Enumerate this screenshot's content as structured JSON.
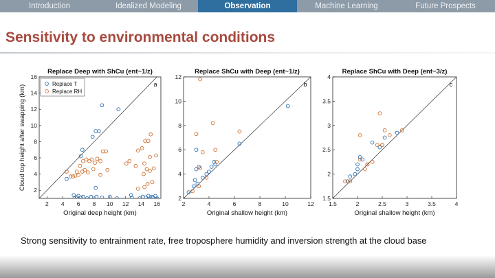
{
  "nav": {
    "tabs": [
      {
        "label": "Introduction",
        "active": false
      },
      {
        "label": "Idealized Modeling",
        "active": false
      },
      {
        "label": "Observation",
        "active": true
      },
      {
        "label": "Machine Learning",
        "active": false
      },
      {
        "label": "Future Prospects",
        "active": false
      }
    ]
  },
  "slide": {
    "title": "Sensitivity to environmental conditions",
    "caption": "Strong sensitivity to entrainment rate, free troposphere humidity and inversion strength at the cloud base"
  },
  "colors": {
    "blue": "#2b6fb3",
    "orange": "#cf6e2d",
    "title": "#a84a3f",
    "active_tab": "#2f6f9f"
  },
  "chart_data": [
    {
      "type": "scatter",
      "title": "Replace Deep with ShCu (ent~1/z)",
      "panel_label": "a",
      "xlabel": "Original deep height (km)",
      "ylabel": "Cloud top height after swapping (km)",
      "xlim": [
        1,
        16.5
      ],
      "ylim": [
        1,
        16
      ],
      "xticks": [
        2,
        4,
        6,
        8,
        10,
        12,
        14,
        16
      ],
      "yticks": [
        2,
        4,
        6,
        8,
        10,
        12,
        14,
        16
      ],
      "legend": {
        "placement": "top-left",
        "entries": [
          "Replace T",
          "Replace RH"
        ]
      },
      "series": [
        {
          "name": "Replace T",
          "color": "#2b6fb3",
          "points": [
            [
              4.5,
              3.4
            ],
            [
              6.5,
              7.0
            ],
            [
              6.3,
              6.2
            ],
            [
              7.8,
              8.6
            ],
            [
              8.2,
              9.3
            ],
            [
              8.6,
              9.3
            ],
            [
              9.0,
              12.5
            ],
            [
              11.1,
              12.0
            ],
            [
              8.2,
              2.3
            ],
            [
              5.4,
              1.4
            ],
            [
              5.5,
              1.0
            ],
            [
              5.8,
              1.1
            ],
            [
              6.0,
              1.3
            ],
            [
              6.3,
              1.1
            ],
            [
              6.6,
              1.2
            ],
            [
              7.1,
              1.0
            ],
            [
              7.6,
              1.2
            ],
            [
              8.3,
              1.2
            ],
            [
              9.0,
              1.1
            ],
            [
              10.0,
              1.2
            ],
            [
              10.9,
              1.0
            ],
            [
              12.8,
              1.1
            ],
            [
              12.7,
              1.4
            ],
            [
              13.8,
              1.0
            ],
            [
              14.2,
              1.2
            ],
            [
              14.6,
              1.1
            ],
            [
              14.9,
              1.3
            ],
            [
              15.1,
              1.0
            ],
            [
              15.3,
              1.2
            ],
            [
              15.5,
              1.1
            ],
            [
              15.8,
              1.3
            ],
            [
              16.0,
              1.0
            ]
          ]
        },
        {
          "name": "Replace RH",
          "color": "#cf6e2d",
          "points": [
            [
              4.5,
              4.3
            ],
            [
              5.0,
              3.7
            ],
            [
              5.3,
              3.7
            ],
            [
              5.6,
              3.8
            ],
            [
              5.8,
              4.3
            ],
            [
              6.0,
              3.9
            ],
            [
              6.2,
              5.0
            ],
            [
              6.5,
              4.3
            ],
            [
              6.6,
              5.6
            ],
            [
              6.8,
              4.5
            ],
            [
              7.0,
              5.8
            ],
            [
              7.2,
              4.2
            ],
            [
              7.4,
              5.6
            ],
            [
              7.7,
              5.8
            ],
            [
              7.9,
              4.6
            ],
            [
              8.1,
              5.4
            ],
            [
              8.4,
              5.9
            ],
            [
              8.8,
              5.6
            ],
            [
              9.1,
              6.8
            ],
            [
              9.5,
              6.8
            ],
            [
              8.8,
              3.9
            ],
            [
              9.7,
              4.5
            ],
            [
              12.1,
              5.3
            ],
            [
              12.5,
              5.6
            ],
            [
              13.3,
              5.0
            ],
            [
              13.6,
              6.9
            ],
            [
              14.1,
              7.2
            ],
            [
              14.5,
              8.1
            ],
            [
              14.9,
              8.1
            ],
            [
              15.2,
              8.9
            ],
            [
              15.1,
              6.1
            ],
            [
              14.4,
              5.3
            ],
            [
              14.7,
              4.6
            ],
            [
              14.3,
              4.0
            ],
            [
              15.6,
              4.7
            ],
            [
              15.9,
              6.3
            ],
            [
              15.1,
              4.4
            ],
            [
              14.8,
              2.8
            ],
            [
              14.4,
              2.4
            ],
            [
              13.6,
              2.2
            ],
            [
              15.4,
              3.0
            ]
          ]
        }
      ]
    },
    {
      "type": "scatter",
      "title": "Replace ShCu with Deep (ent~1/z)",
      "panel_label": "b",
      "xlabel": "Original shallow height (km)",
      "ylabel": "",
      "xlim": [
        2,
        12
      ],
      "ylim": [
        2,
        12
      ],
      "xticks": [
        2,
        4,
        6,
        8,
        10,
        12
      ],
      "yticks": [
        2,
        4,
        6,
        8,
        10,
        12
      ],
      "series": [
        {
          "name": "",
          "color": "#2b6fb3",
          "points": [
            [
              2.4,
              2.5
            ],
            [
              2.8,
              3.0
            ],
            [
              2.9,
              3.5
            ],
            [
              3.0,
              6.0
            ],
            [
              3.2,
              4.6
            ],
            [
              3.5,
              3.7
            ],
            [
              3.8,
              4.0
            ],
            [
              4.0,
              4.2
            ],
            [
              4.2,
              4.6
            ],
            [
              4.4,
              5.0
            ],
            [
              4.5,
              4.8
            ],
            [
              6.4,
              6.5
            ],
            [
              10.2,
              9.6
            ],
            [
              3.0,
              4.4
            ],
            [
              3.1,
              3.2
            ]
          ]
        },
        {
          "name": "",
          "color": "#cf6e2d",
          "points": [
            [
              3.3,
              11.8
            ],
            [
              4.3,
              8.2
            ],
            [
              6.4,
              7.5
            ],
            [
              3.0,
              7.3
            ],
            [
              3.5,
              5.8
            ],
            [
              4.5,
              6.0
            ],
            [
              3.3,
              4.5
            ],
            [
              3.8,
              3.7
            ],
            [
              3.2,
              3.0
            ],
            [
              2.7,
              2.6
            ],
            [
              4.6,
              5.0
            ]
          ]
        }
      ]
    },
    {
      "type": "scatter",
      "title": "Replace ShCu with Deep (ent~3/z)",
      "panel_label": "c",
      "xlabel": "Original shallow height (km)",
      "ylabel": "",
      "xlim": [
        1.5,
        4
      ],
      "ylim": [
        1.5,
        4
      ],
      "xticks": [
        1.5,
        2,
        2.5,
        3,
        3.5,
        4
      ],
      "yticks": [
        1.5,
        2,
        2.5,
        3,
        3.5,
        4
      ],
      "series": [
        {
          "name": "",
          "color": "#2b6fb3",
          "points": [
            [
              1.8,
              1.85
            ],
            [
              1.85,
              1.95
            ],
            [
              1.95,
              2.0
            ],
            [
              2.0,
              2.1
            ],
            [
              2.0,
              2.2
            ],
            [
              2.05,
              2.35
            ],
            [
              2.1,
              2.3
            ],
            [
              2.2,
              2.2
            ],
            [
              2.3,
              2.65
            ],
            [
              2.45,
              2.55
            ],
            [
              2.5,
              2.6
            ],
            [
              2.55,
              2.75
            ],
            [
              2.8,
              2.85
            ]
          ]
        },
        {
          "name": "",
          "color": "#cf6e2d",
          "points": [
            [
              1.75,
              1.85
            ],
            [
              1.85,
              1.85
            ],
            [
              2.05,
              2.8
            ],
            [
              2.2,
              2.2
            ],
            [
              2.3,
              2.25
            ],
            [
              2.4,
              2.6
            ],
            [
              2.45,
              3.25
            ],
            [
              2.55,
              2.9
            ],
            [
              2.65,
              2.8
            ],
            [
              2.9,
              2.9
            ],
            [
              2.15,
              2.1
            ],
            [
              2.5,
              2.6
            ],
            [
              2.05,
              2.3
            ]
          ]
        }
      ]
    }
  ]
}
